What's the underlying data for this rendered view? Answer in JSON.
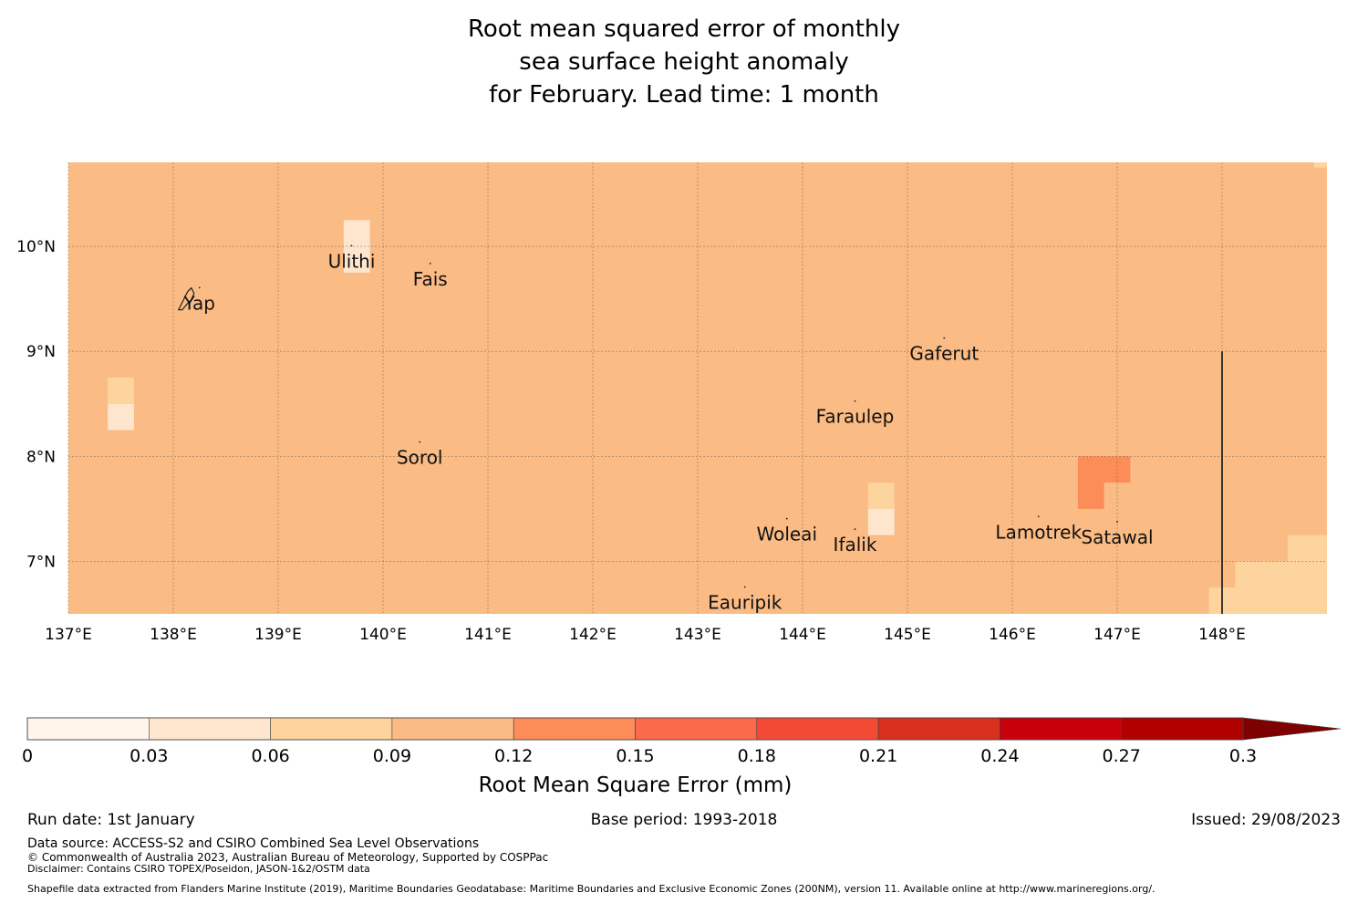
{
  "title": {
    "line1": "Root mean squared error of monthly",
    "line2": "sea surface height anomaly",
    "line3": "for February. Lead time: 1 month"
  },
  "map": {
    "lon_range": [
      137,
      149
    ],
    "lat_range": [
      6.5,
      10.8
    ],
    "background_color": "#fbbb84",
    "lon_ticks": [
      {
        "value": 137,
        "label": "137°E"
      },
      {
        "value": 138,
        "label": "138°E"
      },
      {
        "value": 139,
        "label": "139°E"
      },
      {
        "value": 140,
        "label": "140°E"
      },
      {
        "value": 141,
        "label": "141°E"
      },
      {
        "value": 142,
        "label": "142°E"
      },
      {
        "value": 143,
        "label": "143°E"
      },
      {
        "value": 144,
        "label": "144°E"
      },
      {
        "value": 145,
        "label": "145°E"
      },
      {
        "value": 146,
        "label": "146°E"
      },
      {
        "value": 147,
        "label": "147°E"
      },
      {
        "value": 148,
        "label": "148°E"
      }
    ],
    "lat_ticks": [
      {
        "value": 10,
        "label": "10°N"
      },
      {
        "value": 9,
        "label": "9°N"
      },
      {
        "value": 8,
        "label": "8°N"
      },
      {
        "value": 7,
        "label": "7°N"
      }
    ],
    "places": [
      {
        "name": "Yap",
        "lon": 138.25,
        "lat": 9.45
      },
      {
        "name": "Ulithi",
        "lon": 139.7,
        "lat": 9.85
      },
      {
        "name": "Fais",
        "lon": 140.45,
        "lat": 9.68
      },
      {
        "name": "Gaferut",
        "lon": 145.35,
        "lat": 8.97
      },
      {
        "name": "Faraulep",
        "lon": 144.5,
        "lat": 8.37
      },
      {
        "name": "Sorol",
        "lon": 140.35,
        "lat": 7.98
      },
      {
        "name": "Woleai",
        "lon": 143.85,
        "lat": 7.25
      },
      {
        "name": "Ifalik",
        "lon": 144.5,
        "lat": 7.15
      },
      {
        "name": "Lamotrek",
        "lon": 146.25,
        "lat": 7.27
      },
      {
        "name": "Satawal",
        "lon": 147.0,
        "lat": 7.22
      },
      {
        "name": "Eauripik",
        "lon": 143.45,
        "lat": 6.6
      }
    ],
    "cells": [
      {
        "lon0": 139.625,
        "lat0": 9.75,
        "lon1": 139.875,
        "lat1": 10.25,
        "value": 0.055
      },
      {
        "lon0": 137.375,
        "lat0": 8.5,
        "lon1": 137.625,
        "lat1": 8.75,
        "value": 0.065
      },
      {
        "lon0": 137.375,
        "lat0": 8.25,
        "lon1": 137.625,
        "lat1": 8.5,
        "value": 0.045
      },
      {
        "lon0": 144.625,
        "lat0": 7.5,
        "lon1": 144.875,
        "lat1": 7.75,
        "value": 0.065
      },
      {
        "lon0": 144.625,
        "lat0": 7.25,
        "lon1": 144.875,
        "lat1": 7.5,
        "value": 0.045
      },
      {
        "lon0": 146.625,
        "lat0": 7.75,
        "lon1": 147.125,
        "lat1": 8.0,
        "value": 0.13
      },
      {
        "lon0": 146.625,
        "lat0": 7.5,
        "lon1": 146.875,
        "lat1": 7.75,
        "value": 0.13
      },
      {
        "lon0": 148.625,
        "lat0": 7.0,
        "lon1": 149.0,
        "lat1": 7.25,
        "value": 0.065
      },
      {
        "lon0": 148.125,
        "lat0": 6.75,
        "lon1": 149.0,
        "lat1": 7.0,
        "value": 0.065
      },
      {
        "lon0": 147.875,
        "lat0": 6.5,
        "lon1": 149.0,
        "lat1": 6.75,
        "value": 0.065
      },
      {
        "lon0": 148.875,
        "lat0": 10.75,
        "lon1": 149.0,
        "lat1": 10.8,
        "value": 0.065
      }
    ],
    "eez_line": {
      "lon": 148.0,
      "lat0": 6.5,
      "lat1": 9.0
    }
  },
  "colorbar": {
    "label": "Root Mean Square Error (mm)",
    "ticks": [
      "0",
      "0.03",
      "0.06",
      "0.09",
      "0.12",
      "0.15",
      "0.18",
      "0.21",
      "0.24",
      "0.27",
      "0.3"
    ],
    "colors": [
      "#fff5eb",
      "#fee6ce",
      "#fdd49e",
      "#fbbb84",
      "#fc8d59",
      "#fb6a4a",
      "#f34a36",
      "#d7301f",
      "#c8000c",
      "#b00000"
    ],
    "extend_color": "#7f0000"
  },
  "footer": {
    "run_date": "Run date: 1st January",
    "base_period": "Base period: 1993-2018",
    "issued": "Issued: 29/08/2023",
    "data_source": "Data source: ACCESS-S2 and CSIRO Combined Sea Level Observations",
    "copyright": "© Commonwealth of Australia 2023, Australian Bureau of Meteorology, Supported by COSPPac",
    "disclaimer": "Disclaimer: Contains CSIRO TOPEX/Poseidon, JASON-1&2/OSTM data",
    "shapefile": "Shapefile data extracted from Flanders Marine Institute (2019), Maritime Boundaries Geodatabase: Maritime Boundaries and Exclusive Economic Zones (200NM), version 11. Available online at http://www.marineregions.org/."
  }
}
